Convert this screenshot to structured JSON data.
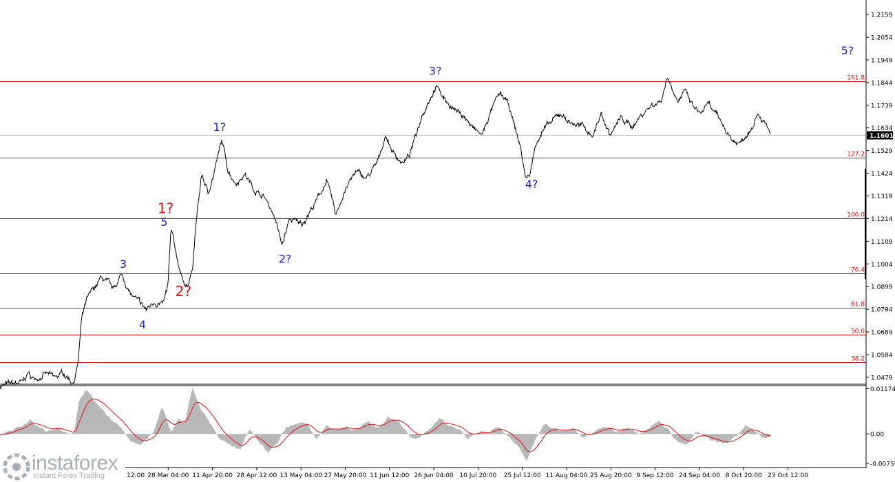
{
  "chart_data": [
    {
      "type": "line",
      "symbol_hint": "price",
      "y_ticks": [
        "1.2159",
        "1.2054",
        "1.1949",
        "1.1844",
        "1.1739",
        "1.1634",
        "1.1529",
        "1.1424",
        "1.1319",
        "1.1214",
        "1.1109",
        "1.1004",
        "1.0899",
        "1.0794",
        "1.0689",
        "1.0584",
        "1.0479"
      ],
      "ylim": [
        1.045,
        1.222
      ],
      "x_ticks": [
        "13 Mar 12:00",
        "28 Mar 04:00",
        "11 Apr 20:00",
        "28 Apr 12:00",
        "13 May 04:00",
        "27 May 20:00",
        "11 Jun 12:00",
        "26 Jun 04:00",
        "10 Jul 20:00",
        "25 Jul 12:00",
        "11 Aug 04:00",
        "25 Aug 20:00",
        "9 Sep 12:00",
        "24 Sep 04:00",
        "8 Oct 20:00",
        "23 Oct 12:00"
      ],
      "current_price": "1.1601",
      "fib_levels": [
        {
          "label": "161.8",
          "value": 1.1851
        },
        {
          "label": "127.2",
          "value": 1.1495
        },
        {
          "label": "100.0",
          "value": 1.1214
        },
        {
          "label": "76.4",
          "value": 1.096
        },
        {
          "label": "61.8",
          "value": 1.0802
        },
        {
          "label": "50.0",
          "value": 1.0675
        },
        {
          "label": "38.2",
          "value": 1.0549
        }
      ],
      "wave_labels": [
        {
          "text": "3",
          "t": 0.16,
          "price": 1.0985,
          "color": "#1f1fd0"
        },
        {
          "text": "4",
          "t": 0.185,
          "price": 1.0705,
          "color": "#1f1fd0"
        },
        {
          "text": "5",
          "t": 0.213,
          "price": 1.118,
          "color": "#1f1fd0"
        },
        {
          "text": "1?",
          "t": 0.215,
          "price": 1.124,
          "color": "#e01010"
        },
        {
          "text": "2?",
          "t": 0.238,
          "price": 1.0855,
          "color": "#e01010"
        },
        {
          "text": "1?",
          "t": 0.285,
          "price": 1.162,
          "color": "#1f1fd0"
        },
        {
          "text": "2?",
          "t": 0.37,
          "price": 1.101,
          "color": "#1f1fd0"
        },
        {
          "text": "3?",
          "t": 0.565,
          "price": 1.188,
          "color": "#1f1fd0"
        },
        {
          "text": "4?",
          "t": 0.69,
          "price": 1.1355,
          "color": "#1f1fd0"
        },
        {
          "text": "5?",
          "t": 1.1,
          "price": 1.1975,
          "color": "#1f1fd0"
        }
      ],
      "price_keypoints": [
        [
          0.0,
          1.044
        ],
        [
          0.03,
          1.0455
        ],
        [
          0.036,
          1.0498
        ],
        [
          0.044,
          1.047
        ],
        [
          0.06,
          1.0495
        ],
        [
          0.072,
          1.0475
        ],
        [
          0.082,
          1.05
        ],
        [
          0.095,
          1.0455
        ],
        [
          0.101,
          1.0535
        ],
        [
          0.106,
          1.0745
        ],
        [
          0.112,
          1.083
        ],
        [
          0.12,
          1.088
        ],
        [
          0.132,
          1.094
        ],
        [
          0.14,
          1.0915
        ],
        [
          0.146,
          1.088
        ],
        [
          0.158,
          1.0955
        ],
        [
          0.17,
          1.086
        ],
        [
          0.182,
          1.082
        ],
        [
          0.19,
          1.079
        ],
        [
          0.2,
          1.083
        ],
        [
          0.212,
          1.0815
        ],
        [
          0.218,
          1.09
        ],
        [
          0.222,
          1.116
        ],
        [
          0.228,
          1.106
        ],
        [
          0.236,
          1.094
        ],
        [
          0.244,
          1.09
        ],
        [
          0.25,
          1.098
        ],
        [
          0.256,
          1.125
        ],
        [
          0.262,
          1.142
        ],
        [
          0.27,
          1.133
        ],
        [
          0.278,
          1.143
        ],
        [
          0.288,
          1.1575
        ],
        [
          0.296,
          1.144
        ],
        [
          0.306,
          1.138
        ],
        [
          0.318,
          1.142
        ],
        [
          0.33,
          1.135
        ],
        [
          0.344,
          1.131
        ],
        [
          0.356,
          1.123
        ],
        [
          0.366,
          1.109
        ],
        [
          0.376,
          1.121
        ],
        [
          0.392,
          1.119
        ],
        [
          0.41,
          1.129
        ],
        [
          0.424,
          1.139
        ],
        [
          0.436,
          1.123
        ],
        [
          0.448,
          1.135
        ],
        [
          0.462,
          1.143
        ],
        [
          0.476,
          1.14
        ],
        [
          0.49,
          1.147
        ],
        [
          0.5,
          1.16
        ],
        [
          0.512,
          1.151
        ],
        [
          0.524,
          1.147
        ],
        [
          0.532,
          1.151
        ],
        [
          0.54,
          1.16
        ],
        [
          0.548,
          1.17
        ],
        [
          0.556,
          1.176
        ],
        [
          0.566,
          1.183
        ],
        [
          0.576,
          1.177
        ],
        [
          0.59,
          1.172
        ],
        [
          0.602,
          1.169
        ],
        [
          0.614,
          1.163
        ],
        [
          0.626,
          1.16
        ],
        [
          0.634,
          1.168
        ],
        [
          0.642,
          1.175
        ],
        [
          0.65,
          1.179
        ],
        [
          0.66,
          1.174
        ],
        [
          0.668,
          1.164
        ],
        [
          0.676,
          1.154
        ],
        [
          0.682,
          1.14
        ],
        [
          0.688,
          1.142
        ],
        [
          0.696,
          1.157
        ],
        [
          0.704,
          1.162
        ],
        [
          0.716,
          1.166
        ],
        [
          0.728,
          1.17
        ],
        [
          0.74,
          1.166
        ],
        [
          0.756,
          1.164
        ],
        [
          0.77,
          1.16
        ],
        [
          0.78,
          1.17
        ],
        [
          0.792,
          1.16
        ],
        [
          0.806,
          1.168
        ],
        [
          0.82,
          1.164
        ],
        [
          0.834,
          1.17
        ],
        [
          0.846,
          1.174
        ],
        [
          0.858,
          1.176
        ],
        [
          0.866,
          1.187
        ],
        [
          0.872,
          1.183
        ],
        [
          0.88,
          1.176
        ],
        [
          0.89,
          1.18
        ],
        [
          0.898,
          1.174
        ],
        [
          0.908,
          1.17
        ],
        [
          0.92,
          1.174
        ],
        [
          0.93,
          1.169
        ],
        [
          0.94,
          1.164
        ],
        [
          0.95,
          1.158
        ],
        [
          0.96,
          1.156
        ],
        [
          0.972,
          1.162
        ],
        [
          0.984,
          1.171
        ],
        [
          0.992,
          1.166
        ],
        [
          1.0,
          1.16
        ]
      ],
      "price_data_t_end": 0.923
    },
    {
      "type": "area",
      "indicator_hint": "oscillator",
      "y_ticks": [
        "0.01174",
        "0.00",
        "-0.00759"
      ],
      "ylim": [
        -0.0085,
        0.0125
      ],
      "histogram_keypoints": [
        [
          0.0,
          0.0
        ],
        [
          0.02,
          0.001
        ],
        [
          0.04,
          0.0035
        ],
        [
          0.06,
          0.0005
        ],
        [
          0.075,
          0.0015
        ],
        [
          0.095,
          -0.001
        ],
        [
          0.102,
          0.008
        ],
        [
          0.112,
          0.0115
        ],
        [
          0.125,
          0.008
        ],
        [
          0.14,
          0.005
        ],
        [
          0.155,
          0.002
        ],
        [
          0.17,
          -0.002
        ],
        [
          0.185,
          -0.003
        ],
        [
          0.2,
          0.001
        ],
        [
          0.21,
          0.007
        ],
        [
          0.222,
          0.001
        ],
        [
          0.232,
          0.004
        ],
        [
          0.24,
          0.003
        ],
        [
          0.25,
          0.012
        ],
        [
          0.262,
          0.006
        ],
        [
          0.272,
          0.003
        ],
        [
          0.286,
          -0.0015
        ],
        [
          0.3,
          -0.003
        ],
        [
          0.312,
          -0.004
        ],
        [
          0.324,
          0.0015
        ],
        [
          0.336,
          -0.002
        ],
        [
          0.348,
          -0.005
        ],
        [
          0.36,
          -0.002
        ],
        [
          0.372,
          0.002
        ],
        [
          0.385,
          0.0025
        ],
        [
          0.398,
          0.003
        ],
        [
          0.41,
          -0.001
        ],
        [
          0.424,
          0.002
        ],
        [
          0.436,
          0.001
        ],
        [
          0.45,
          0.002
        ],
        [
          0.464,
          0.001
        ],
        [
          0.478,
          0.003
        ],
        [
          0.49,
          0.0015
        ],
        [
          0.504,
          0.0045
        ],
        [
          0.518,
          0.0035
        ],
        [
          0.532,
          -0.001
        ],
        [
          0.544,
          -0.0015
        ],
        [
          0.556,
          0.001
        ],
        [
          0.57,
          0.004
        ],
        [
          0.582,
          0.0025
        ],
        [
          0.594,
          0.0015
        ],
        [
          0.606,
          -0.0015
        ],
        [
          0.62,
          0.001
        ],
        [
          0.634,
          0.0005
        ],
        [
          0.648,
          0.002
        ],
        [
          0.662,
          -0.001
        ],
        [
          0.674,
          -0.004
        ],
        [
          0.684,
          -0.007
        ],
        [
          0.694,
          -0.002
        ],
        [
          0.706,
          0.003
        ],
        [
          0.718,
          0.0015
        ],
        [
          0.73,
          0.0005
        ],
        [
          0.744,
          0.0015
        ],
        [
          0.758,
          -0.001
        ],
        [
          0.772,
          0.0005
        ],
        [
          0.786,
          0.002
        ],
        [
          0.8,
          0.0005
        ],
        [
          0.814,
          0.002
        ],
        [
          0.828,
          0.0005
        ],
        [
          0.842,
          0.0015
        ],
        [
          0.856,
          0.0035
        ],
        [
          0.868,
          0.001
        ],
        [
          0.88,
          -0.002
        ],
        [
          0.892,
          -0.003
        ],
        [
          0.904,
          0.0005
        ],
        [
          0.916,
          -0.001
        ],
        [
          0.93,
          -0.002
        ],
        [
          0.942,
          -0.0025
        ],
        [
          0.956,
          -0.0005
        ],
        [
          0.968,
          0.0025
        ],
        [
          0.98,
          0.001
        ],
        [
          0.99,
          -0.001
        ],
        [
          1.0,
          -0.001
        ]
      ]
    }
  ],
  "branding": {
    "logo_text": "instaforex",
    "tagline": "Instant Forex Trading"
  },
  "colors": {
    "price": "#000000",
    "fib": "#e01010",
    "histogram": "#b8b8b8",
    "signal": "#e01010",
    "current_price_box": "#000000"
  }
}
